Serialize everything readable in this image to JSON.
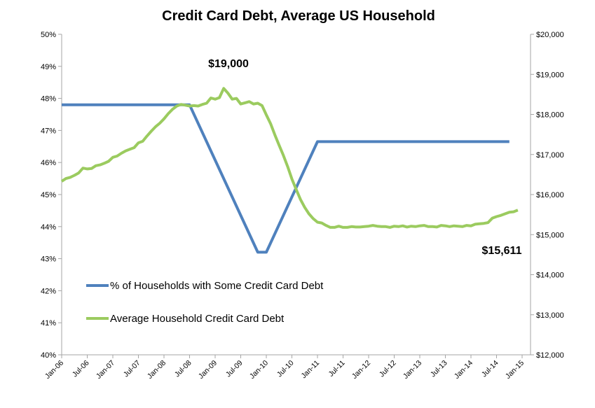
{
  "chart_data": {
    "type": "line",
    "title": "Credit Card Debt, Average US Household",
    "xlabel": "",
    "ylabel": "",
    "y2label": "",
    "grid": false,
    "legend_position": "center-left",
    "x_tick_labels": [
      "Jan-06",
      "Jul-06",
      "Jan-07",
      "Jul-07",
      "Jan-08",
      "Jul-08",
      "Jan-09",
      "Jul-09",
      "Jan-10",
      "Jul-10",
      "Jan-11",
      "Jul-11",
      "Jan-12",
      "Jul-12",
      "Jan-13",
      "Jul-13",
      "Jan-14",
      "Jul-14",
      "Jan-15"
    ],
    "xlim": [
      "2006-01",
      "2015-01"
    ],
    "y_left": {
      "lim": [
        40,
        50
      ],
      "ticks": [
        "40%",
        "41%",
        "42%",
        "43%",
        "44%",
        "45%",
        "46%",
        "47%",
        "48%",
        "49%",
        "50%"
      ]
    },
    "y_right": {
      "lim": [
        12000,
        20000
      ],
      "ticks": [
        "$12,000",
        "$13,000",
        "$14,000",
        "$15,000",
        "$16,000",
        "$17,000",
        "$18,000",
        "$19,000",
        "$20,000"
      ]
    },
    "series": [
      {
        "name": "% of Households with Some Credit Card Debt",
        "axis": "left",
        "color": "#4f81bd",
        "points": [
          [
            "2006-01",
            47.8
          ],
          [
            "2008-07",
            47.8
          ],
          [
            "2009-11",
            43.2
          ],
          [
            "2010-01",
            43.2
          ],
          [
            "2011-01",
            46.65
          ],
          [
            "2014-10",
            46.65
          ]
        ]
      },
      {
        "name": "Average Household Credit Card Debt",
        "axis": "right",
        "color": "#9bcb5f",
        "points": [
          [
            "2006-01",
            16330
          ],
          [
            "2006-02",
            16400
          ],
          [
            "2006-03",
            16430
          ],
          [
            "2006-04",
            16480
          ],
          [
            "2006-05",
            16540
          ],
          [
            "2006-06",
            16660
          ],
          [
            "2006-07",
            16640
          ],
          [
            "2006-08",
            16650
          ],
          [
            "2006-09",
            16720
          ],
          [
            "2006-10",
            16740
          ],
          [
            "2006-11",
            16780
          ],
          [
            "2006-12",
            16830
          ],
          [
            "2007-01",
            16930
          ],
          [
            "2007-02",
            16960
          ],
          [
            "2007-03",
            17030
          ],
          [
            "2007-04",
            17090
          ],
          [
            "2007-05",
            17130
          ],
          [
            "2007-06",
            17170
          ],
          [
            "2007-07",
            17290
          ],
          [
            "2007-08",
            17330
          ],
          [
            "2007-09",
            17460
          ],
          [
            "2007-10",
            17580
          ],
          [
            "2007-11",
            17690
          ],
          [
            "2007-12",
            17780
          ],
          [
            "2008-01",
            17890
          ],
          [
            "2008-02",
            18020
          ],
          [
            "2008-03",
            18130
          ],
          [
            "2008-04",
            18210
          ],
          [
            "2008-05",
            18250
          ],
          [
            "2008-06",
            18230
          ],
          [
            "2008-07",
            18210
          ],
          [
            "2008-08",
            18220
          ],
          [
            "2008-09",
            18210
          ],
          [
            "2008-10",
            18250
          ],
          [
            "2008-11",
            18280
          ],
          [
            "2008-12",
            18410
          ],
          [
            "2009-01",
            18380
          ],
          [
            "2009-02",
            18420
          ],
          [
            "2009-03",
            18650
          ],
          [
            "2009-04",
            18530
          ],
          [
            "2009-05",
            18380
          ],
          [
            "2009-06",
            18400
          ],
          [
            "2009-07",
            18260
          ],
          [
            "2009-08",
            18290
          ],
          [
            "2009-09",
            18320
          ],
          [
            "2009-10",
            18260
          ],
          [
            "2009-11",
            18280
          ],
          [
            "2009-12",
            18220
          ],
          [
            "2010-01",
            17990
          ],
          [
            "2010-02",
            17770
          ],
          [
            "2010-03",
            17490
          ],
          [
            "2010-04",
            17230
          ],
          [
            "2010-05",
            16980
          ],
          [
            "2010-06",
            16700
          ],
          [
            "2010-07",
            16390
          ],
          [
            "2010-08",
            16130
          ],
          [
            "2010-09",
            15880
          ],
          [
            "2010-10",
            15680
          ],
          [
            "2010-11",
            15520
          ],
          [
            "2010-12",
            15400
          ],
          [
            "2011-01",
            15310
          ],
          [
            "2011-02",
            15290
          ],
          [
            "2011-03",
            15230
          ],
          [
            "2011-04",
            15180
          ],
          [
            "2011-05",
            15180
          ],
          [
            "2011-06",
            15210
          ],
          [
            "2011-07",
            15180
          ],
          [
            "2011-08",
            15180
          ],
          [
            "2011-09",
            15200
          ],
          [
            "2011-10",
            15190
          ],
          [
            "2011-11",
            15190
          ],
          [
            "2011-12",
            15200
          ],
          [
            "2012-01",
            15210
          ],
          [
            "2012-02",
            15230
          ],
          [
            "2012-03",
            15210
          ],
          [
            "2012-04",
            15200
          ],
          [
            "2012-05",
            15200
          ],
          [
            "2012-06",
            15180
          ],
          [
            "2012-07",
            15210
          ],
          [
            "2012-08",
            15200
          ],
          [
            "2012-09",
            15220
          ],
          [
            "2012-10",
            15190
          ],
          [
            "2012-11",
            15210
          ],
          [
            "2012-12",
            15200
          ],
          [
            "2013-01",
            15220
          ],
          [
            "2013-02",
            15230
          ],
          [
            "2013-03",
            15200
          ],
          [
            "2013-04",
            15200
          ],
          [
            "2013-05",
            15190
          ],
          [
            "2013-06",
            15230
          ],
          [
            "2013-07",
            15220
          ],
          [
            "2013-08",
            15200
          ],
          [
            "2013-09",
            15220
          ],
          [
            "2013-10",
            15210
          ],
          [
            "2013-11",
            15200
          ],
          [
            "2013-12",
            15230
          ],
          [
            "2014-01",
            15220
          ],
          [
            "2014-02",
            15260
          ],
          [
            "2014-03",
            15270
          ],
          [
            "2014-04",
            15280
          ],
          [
            "2014-05",
            15300
          ],
          [
            "2014-06",
            15410
          ],
          [
            "2014-07",
            15450
          ],
          [
            "2014-08",
            15480
          ],
          [
            "2014-09",
            15520
          ],
          [
            "2014-10",
            15560
          ],
          [
            "2014-11",
            15570
          ],
          [
            "2014-12",
            15611
          ]
        ]
      }
    ],
    "annotations": [
      {
        "text": "$19,000",
        "at": [
          "2009-03",
          19000
        ],
        "series": "right"
      },
      {
        "text": "$15,611",
        "at": [
          "2014-04",
          15611
        ],
        "series": "right"
      }
    ]
  }
}
